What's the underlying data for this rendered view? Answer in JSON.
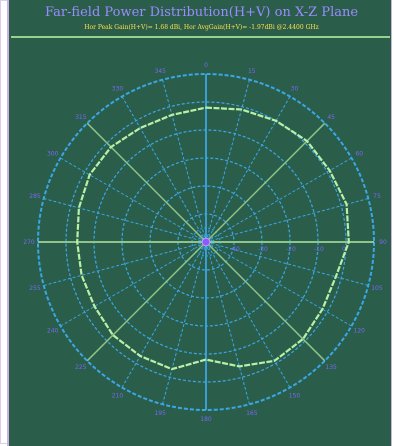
{
  "title": "Far-field Power Distribution(H+V) on X-Z Plane",
  "subtitle": "Hor Peak Gain(H+V)= 1.68 dBi, Hor AvgGain(H+V)= -1.97dBi @2.4400 GHz",
  "chart_data": {
    "type": "polar",
    "title": "Far-field Power Distribution(H+V) on X-Z Plane",
    "subtitle": "Hor Peak Gain(H+V)= 1.68 dBi, Hor AvgGain(H+V)= -1.97dBi @2.4400 GHz",
    "angle_ticks": [
      "0",
      "15",
      "30",
      "45",
      "60",
      "75",
      "90",
      "105",
      "120",
      "135",
      "150",
      "165",
      "180",
      "195",
      "210",
      "225",
      "240",
      "255",
      "270",
      "285",
      "300",
      "315",
      "330",
      "345"
    ],
    "radial_labels": [
      "-40",
      "-30",
      "-20",
      "-10",
      "0"
    ],
    "radial_range": [
      -50,
      10
    ],
    "grid": true,
    "series": [
      {
        "angles": [
          0,
          15,
          30,
          45,
          60,
          75,
          90,
          105,
          120,
          135,
          150,
          165,
          180,
          195,
          210,
          225,
          240,
          255,
          270,
          285,
          300,
          315,
          330,
          345,
          360
        ],
        "values": [
          -2,
          -1,
          0,
          1,
          1,
          2,
          1,
          -2,
          -2,
          -1,
          -1,
          -4,
          -8,
          -3,
          -3,
          -3,
          -4,
          -4,
          -4,
          -3,
          -2,
          -2,
          -3,
          -3,
          -2
        ]
      }
    ],
    "colors": {
      "background": "#2a5e4a",
      "grid_dashed": "#3aa7e8",
      "grid_solid": "#8fc48a",
      "axis": "#3aa7e8",
      "trace": "#b8f0a8",
      "angle_labels": "#7868f0",
      "title": "#9a8cff",
      "subtitle": "#ffe14a"
    }
  }
}
